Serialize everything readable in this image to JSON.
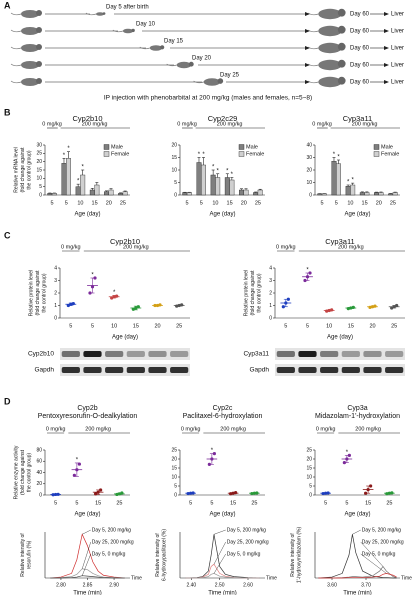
{
  "diagram": {
    "panel": "A",
    "first_label": "Day 5 after birth",
    "injection_days": [
      "Day 10",
      "Day 15",
      "Day 20",
      "Day 25"
    ],
    "end_day": "Day 60",
    "organ": "Liver",
    "caption": "IP injection with phenobarbital at 200 mg/kg (males and females, n=5~8)"
  },
  "chart_data": [
    {
      "type": "bar",
      "panel": "B",
      "title": "Cyp2b10",
      "ylabel": [
        "Relative mRNA level",
        "(fold change against",
        "the control group)"
      ],
      "xlabel": "Age (day)",
      "dose_labels": [
        "0 mg/kg",
        "200 mg/kg"
      ],
      "categories": [
        5,
        5,
        10,
        15,
        20,
        25
      ],
      "ylim": [
        0,
        30
      ],
      "yticks": [
        0,
        5,
        10,
        15,
        20,
        25,
        30
      ],
      "series": [
        {
          "name": "Male",
          "color": "#7f7f7f",
          "values": [
            1,
            19,
            5,
            3,
            2,
            1
          ],
          "errors": [
            0.2,
            3,
            1.5,
            1,
            0.5,
            0.3
          ],
          "stars": [
            null,
            "*",
            "*",
            null,
            null,
            null
          ]
        },
        {
          "name": "Female",
          "color": "#d0d0d0",
          "values": [
            1,
            22,
            12,
            6,
            3,
            2
          ],
          "errors": [
            0.2,
            4,
            3,
            1.5,
            0.8,
            0.4
          ],
          "stars": [
            null,
            "*",
            "*",
            null,
            null,
            null
          ]
        }
      ]
    },
    {
      "type": "bar",
      "title": "Cyp2c29",
      "xlabel": "Age (day)",
      "dose_labels": [
        "0 mg/kg",
        "200 mg/kg"
      ],
      "categories": [
        5,
        5,
        10,
        15,
        20,
        25
      ],
      "ylim": [
        0,
        20
      ],
      "yticks": [
        0,
        5,
        10,
        15,
        20
      ],
      "series": [
        {
          "name": "Male",
          "color": "#7f7f7f",
          "values": [
            1,
            13,
            8,
            7,
            2,
            1
          ],
          "errors": [
            0.1,
            2,
            2,
            1.5,
            0.5,
            0.2
          ],
          "stars": [
            null,
            "*",
            "*",
            "*",
            null,
            null
          ]
        },
        {
          "name": "Female",
          "color": "#d0d0d0",
          "values": [
            1,
            12,
            7,
            6,
            2,
            2
          ],
          "errors": [
            0.1,
            3,
            1.5,
            1,
            0.5,
            0.3
          ],
          "stars": [
            null,
            "*",
            "*",
            "*",
            null,
            null
          ]
        }
      ]
    },
    {
      "type": "bar",
      "title": "Cyp3a11",
      "xlabel": "Age (day)",
      "dose_labels": [
        "0 mg/kg",
        "200 mg/kg"
      ],
      "categories": [
        5,
        5,
        10,
        15,
        20,
        25
      ],
      "ylim": [
        0,
        40
      ],
      "yticks": [
        0,
        10,
        20,
        30,
        40
      ],
      "series": [
        {
          "name": "Male",
          "color": "#7f7f7f",
          "values": [
            1,
            27,
            7,
            2,
            2,
            1
          ],
          "errors": [
            0.1,
            3,
            1,
            0.5,
            0.3,
            0.2
          ],
          "stars": [
            null,
            "*",
            "*",
            null,
            null,
            null
          ]
        },
        {
          "name": "Female",
          "color": "#d0d0d0",
          "values": [
            1,
            25,
            8,
            2,
            2,
            2
          ],
          "errors": [
            0.1,
            3,
            1.5,
            0.5,
            0.4,
            0.3
          ],
          "stars": [
            null,
            "*",
            "*",
            null,
            null,
            null
          ]
        }
      ]
    },
    {
      "type": "dot",
      "panel": "C",
      "title": "Cyp2b10",
      "ylabel": [
        "Relative protein level",
        "(fold change against",
        "the control group)"
      ],
      "xlabel": "Age (day)",
      "dose_labels": [
        "0 mg/kg",
        "200 mg/kg"
      ],
      "categories": [
        5,
        5,
        10,
        15,
        20,
        25
      ],
      "ylim": [
        0,
        4
      ],
      "yticks": [
        0,
        1,
        2,
        3,
        4
      ],
      "values": [
        1.1,
        2.6,
        1.7,
        0.8,
        1.0,
        1.0
      ],
      "errors": [
        0.1,
        0.6,
        0.1,
        0.15,
        0.05,
        0.05
      ],
      "points": [
        [
          1.0,
          1.1,
          1.15
        ],
        [
          2.0,
          2.5,
          3.2
        ],
        [
          1.6,
          1.7,
          1.75
        ],
        [
          0.7,
          0.8,
          0.9
        ],
        [
          1.0,
          1.0,
          1.05
        ],
        [
          0.95,
          1.0,
          1.05
        ]
      ],
      "stars": [
        null,
        "*",
        "*",
        null,
        null,
        null
      ],
      "colors": [
        "#1f3fbf",
        "#7b2a9a",
        "#c44444",
        "#2a9a3a",
        "#d4a017",
        "#555555"
      ],
      "blot_labels": [
        "Cyp2b10",
        "Gapdh"
      ]
    },
    {
      "type": "dot",
      "title": "Cyp3a11",
      "ylabel": [
        "Relative protein level",
        "(fold change against",
        "the control group)"
      ],
      "xlabel": "Age (day)",
      "dose_labels": [
        "0 mg/kg",
        "200 mg/kg"
      ],
      "categories": [
        5,
        5,
        10,
        15,
        20,
        25
      ],
      "ylim": [
        0,
        4
      ],
      "yticks": [
        0,
        1,
        2,
        3,
        4
      ],
      "values": [
        1.2,
        3.3,
        0.6,
        0.8,
        0.9,
        0.9
      ],
      "errors": [
        0.3,
        0.3,
        0.05,
        0.05,
        0.05,
        0.1
      ],
      "points": [
        [
          0.9,
          1.2,
          1.5
        ],
        [
          3.0,
          3.3,
          3.6
        ],
        [
          0.55,
          0.6,
          0.65
        ],
        [
          0.75,
          0.8,
          0.85
        ],
        [
          0.85,
          0.9,
          0.95
        ],
        [
          0.8,
          0.9,
          1.0
        ]
      ],
      "stars": [
        null,
        "*",
        null,
        null,
        null,
        null
      ],
      "colors": [
        "#1f3fbf",
        "#7b2a9a",
        "#c44444",
        "#2a9a3a",
        "#d4a017",
        "#555555"
      ],
      "blot_labels": [
        "Cyp3a11",
        "Gapdh"
      ]
    },
    {
      "type": "dot",
      "panel": "D",
      "title": [
        "Cyp2b",
        "Pentoxyresorufin-O-dealkylation"
      ],
      "ylabel": [
        "Relative enzyme activity",
        "(fold change against",
        "the control group)"
      ],
      "xlabel": "Age (day)",
      "dose_labels": [
        "0 mg/kg",
        "200 mg/kg"
      ],
      "categories": [
        5,
        5,
        15,
        25
      ],
      "ylim": [
        0,
        80
      ],
      "yticks": [
        0,
        20,
        40,
        60,
        80
      ],
      "values": [
        1,
        45,
        5,
        2
      ],
      "errors": [
        0.5,
        12,
        4,
        1.5
      ],
      "points": [
        [
          0.5,
          1,
          1.2
        ],
        [
          35,
          45,
          55
        ],
        [
          2,
          5,
          9
        ],
        [
          1,
          2,
          3.5
        ]
      ],
      "stars": [
        null,
        "*",
        null,
        null
      ],
      "colors": [
        "#1f3fbf",
        "#7b2a9a",
        "#8b1a1a",
        "#2a9a3a"
      ]
    },
    {
      "type": "dot",
      "title": [
        "Cyp2c",
        "Paclitaxel-6-hydroxylation"
      ],
      "xlabel": "Age (day)",
      "dose_labels": [
        "0 mg/kg",
        "200 mg/kg"
      ],
      "categories": [
        5,
        5,
        15,
        25
      ],
      "ylim": [
        0,
        25
      ],
      "yticks": [
        0,
        5,
        10,
        15,
        20,
        25
      ],
      "values": [
        1,
        20,
        1,
        1
      ],
      "errors": [
        0.2,
        3,
        0.3,
        0.2
      ],
      "points": [
        [
          0.8,
          1,
          1.1
        ],
        [
          17,
          20,
          23
        ],
        [
          0.7,
          1,
          1.3
        ],
        [
          0.8,
          1,
          1.1
        ]
      ],
      "stars": [
        null,
        "*",
        null,
        null
      ],
      "colors": [
        "#1f3fbf",
        "#7b2a9a",
        "#8b1a1a",
        "#2a9a3a"
      ]
    },
    {
      "type": "dot",
      "title": [
        "Cyp3a",
        "Midazolam-1'-hydroxylation"
      ],
      "xlabel": "Age (day)",
      "dose_labels": [
        "0 mg/kg",
        "200 mg/kg"
      ],
      "categories": [
        5,
        5,
        15,
        25
      ],
      "ylim": [
        0,
        25
      ],
      "yticks": [
        0,
        5,
        10,
        15,
        20,
        25
      ],
      "values": [
        1,
        20,
        3,
        1
      ],
      "errors": [
        0.2,
        2,
        2,
        0.3
      ],
      "points": [
        [
          0.8,
          1,
          1.1
        ],
        [
          18,
          20,
          22
        ],
        [
          1,
          3,
          5
        ],
        [
          0.7,
          1,
          1.2
        ]
      ],
      "stars": [
        null,
        "*",
        null,
        null
      ],
      "colors": [
        "#1f3fbf",
        "#7b2a9a",
        "#8b1a1a",
        "#2a9a3a"
      ]
    },
    {
      "type": "line",
      "ylabel": [
        "Relative intensity of",
        "resorufin (%)"
      ],
      "xlabel": "Time (min)",
      "axis_end_label": "Time",
      "xlim": [
        2.77,
        2.93
      ],
      "xticks": [
        {
          "value": 2.8,
          "label": "2.80"
        },
        {
          "value": 2.85,
          "label": "2.85"
        },
        {
          "value": 2.9,
          "label": "2.90"
        }
      ],
      "ylim": [
        0,
        100
      ],
      "x": [
        2.78,
        2.8,
        2.82,
        2.83,
        2.84,
        2.85,
        2.86,
        2.87,
        2.88,
        2.9,
        2.92
      ],
      "series": [
        {
          "name": "Day 5, 200 mg/kg",
          "color": "#d03030",
          "values": [
            0,
            2,
            10,
            40,
            95,
            70,
            35,
            15,
            6,
            2,
            0
          ]
        },
        {
          "name": "Day 25, 200 mg/kg",
          "color": "#999999",
          "values": [
            0,
            1,
            3,
            8,
            20,
            18,
            10,
            5,
            2,
            1,
            0
          ]
        },
        {
          "name": "Day 5, 0 mg/kg",
          "color": "#444444",
          "values": [
            0,
            0,
            1,
            2,
            5,
            4,
            3,
            2,
            1,
            0,
            0
          ]
        }
      ]
    },
    {
      "type": "line",
      "ylabel": [
        "Relative intensity of",
        "6-hydroxypaclitaxel (%)"
      ],
      "xlabel": "Time (min)",
      "axis_end_label": "Time",
      "xlim": [
        2.36,
        2.66
      ],
      "xticks": [
        {
          "value": 2.4,
          "label": "2.40"
        },
        {
          "value": 2.5,
          "label": "2.50"
        },
        {
          "value": 2.6,
          "label": "2.60"
        }
      ],
      "ylim": [
        0,
        100
      ],
      "x": [
        2.38,
        2.42,
        2.44,
        2.46,
        2.47,
        2.48,
        2.49,
        2.5,
        2.52,
        2.55,
        2.6,
        2.64
      ],
      "series": [
        {
          "name": "Day 5, 200 mg/kg",
          "color": "#333333",
          "values": [
            0,
            1,
            3,
            15,
            50,
            95,
            60,
            25,
            8,
            3,
            1,
            0
          ]
        },
        {
          "name": "Day 25, 200 mg/kg",
          "color": "#e08080",
          "values": [
            0,
            0,
            2,
            8,
            25,
            30,
            20,
            10,
            4,
            1,
            0,
            0
          ]
        },
        {
          "name": "Day 5, 0 mg/kg",
          "color": "#999999",
          "values": [
            0,
            0,
            1,
            3,
            8,
            10,
            7,
            4,
            2,
            1,
            0,
            0
          ]
        }
      ]
    },
    {
      "type": "line",
      "ylabel": [
        "Relative intensity of",
        "1'-hydroxymidazolam (%)"
      ],
      "xlabel": "Time (min)",
      "axis_end_label": "Time",
      "xlim": [
        3.55,
        3.8
      ],
      "xticks": [
        {
          "value": 3.6,
          "label": "3.60"
        },
        {
          "value": 3.7,
          "label": "3.70"
        }
      ],
      "ylim": [
        0,
        100
      ],
      "x": [
        3.56,
        3.6,
        3.63,
        3.65,
        3.66,
        3.67,
        3.69,
        3.72,
        3.74,
        3.75,
        3.76,
        3.78,
        3.79
      ],
      "series": [
        {
          "name": "Day 5, 200 mg/kg",
          "color": "#333333",
          "values": [
            0,
            2,
            10,
            50,
            95,
            55,
            15,
            4,
            2,
            1,
            1,
            0,
            0
          ]
        },
        {
          "name": "Day 25, 200 mg/kg",
          "color": "#777777",
          "values": [
            0,
            0,
            1,
            2,
            3,
            3,
            2,
            5,
            15,
            25,
            15,
            3,
            1
          ]
        },
        {
          "name": "Day 5, 0 mg/kg",
          "color": "#d03030",
          "values": [
            0,
            0,
            0,
            1,
            1,
            1,
            1,
            2,
            4,
            8,
            10,
            6,
            2
          ]
        }
      ]
    }
  ]
}
